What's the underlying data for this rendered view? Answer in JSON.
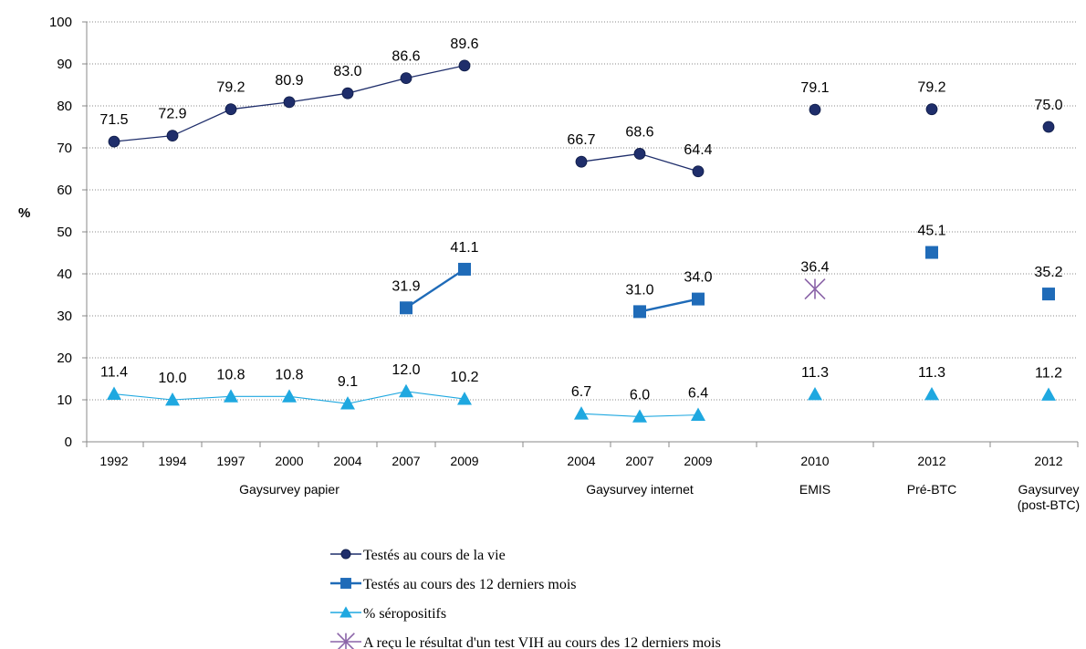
{
  "chart_data": {
    "type": "line",
    "ylabel": "%",
    "ylim": [
      0,
      100
    ],
    "yticks": [
      0,
      10,
      20,
      30,
      40,
      50,
      60,
      70,
      80,
      90,
      100
    ],
    "grid": true,
    "legend_position": "bottom",
    "x": [
      "1992",
      "1994",
      "1997",
      "2000",
      "2004",
      "2007",
      "2009",
      "2004",
      "2007",
      "2009",
      "2010",
      "2012",
      "2012"
    ],
    "groups": [
      {
        "label": "Gaysurvey papier",
        "from": 0,
        "to": 6
      },
      {
        "label": "Gaysurvey internet",
        "from": 7,
        "to": 9
      },
      {
        "label": "EMIS",
        "from": 10,
        "to": 10
      },
      {
        "label": "Pré-BTC",
        "from": 11,
        "to": 11
      },
      {
        "label": "Gaysurvey\n(post-BTC)",
        "from": 12,
        "to": 12
      }
    ],
    "series": [
      {
        "name": "Testés au cours de la vie",
        "color": "#1F2E6B",
        "marker": "circle",
        "values": [
          71.5,
          72.9,
          79.2,
          80.9,
          83.0,
          86.6,
          89.6,
          66.7,
          68.6,
          64.4,
          79.1,
          79.2,
          75.0
        ],
        "labels": [
          "71.5",
          "72.9",
          "79.2",
          "80.9",
          "83.0",
          "86.6",
          "89.6",
          "66.7",
          "68.6",
          "64.4",
          "79.1",
          "79.2",
          "75.0"
        ],
        "segments": [
          [
            0,
            6
          ],
          [
            7,
            9
          ]
        ]
      },
      {
        "name": "Testés au cours des 12 derniers mois",
        "color": "#1F6BB8",
        "marker": "square",
        "values": [
          null,
          null,
          null,
          null,
          null,
          31.9,
          41.1,
          null,
          31.0,
          34.0,
          null,
          45.1,
          35.2
        ],
        "labels": [
          null,
          null,
          null,
          null,
          null,
          "31.9",
          "41.1",
          null,
          "31.0",
          "34.0",
          null,
          "45.1",
          "35.2"
        ],
        "segments": [
          [
            5,
            6
          ],
          [
            8,
            9
          ]
        ]
      },
      {
        "name": "% séropositifs",
        "color": "#1FA8E0",
        "marker": "triangle",
        "values": [
          11.4,
          10.0,
          10.8,
          10.8,
          9.1,
          12.0,
          10.2,
          6.7,
          6.0,
          6.4,
          11.3,
          11.3,
          11.2
        ],
        "labels": [
          "11.4",
          "10.0",
          "10.8",
          "10.8",
          "9.1",
          "12.0",
          "10.2",
          "6.7",
          "6.0",
          "6.4",
          "11.3",
          "11.3",
          "11.2"
        ],
        "segments": [
          [
            0,
            6
          ],
          [
            7,
            9
          ]
        ]
      },
      {
        "name": "A reçu le résultat d'un test VIH au cours des 12 derniers mois",
        "color": "#8B64A8",
        "marker": "star",
        "values": [
          null,
          null,
          null,
          null,
          null,
          null,
          null,
          null,
          null,
          null,
          36.4,
          null,
          null
        ],
        "labels": [
          null,
          null,
          null,
          null,
          null,
          null,
          null,
          null,
          null,
          null,
          "36.4",
          null,
          null
        ],
        "segments": []
      }
    ]
  }
}
